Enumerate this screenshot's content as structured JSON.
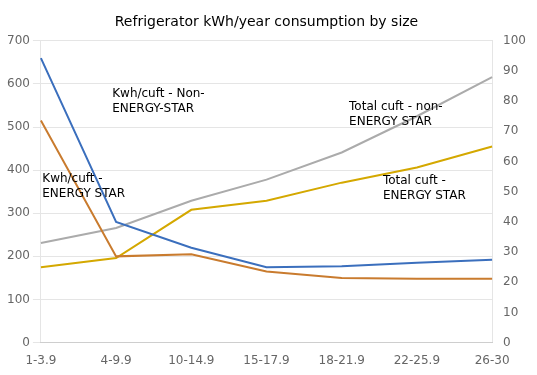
{
  "chart_data": {
    "type": "line",
    "title": "Refrigerator kWh/year consumption by size",
    "categories": [
      "1-3.9",
      "4-9.9",
      "10-14.9",
      "15-17.9",
      "18-21.9",
      "22-25.9",
      "26-30"
    ],
    "ylim": [
      0,
      700
    ],
    "yticks": [
      0,
      100,
      200,
      300,
      400,
      500,
      600,
      700
    ],
    "y2lim": [
      0,
      100
    ],
    "y2ticks": [
      0,
      10,
      20,
      30,
      40,
      50,
      60,
      70,
      80,
      90,
      100
    ],
    "grid": true,
    "series": [
      {
        "color": "#3B6FBD",
        "values": [
          660,
          280,
          220,
          175,
          177,
          185,
          192
        ]
      },
      {
        "color": "#C97B2E",
        "values": [
          515,
          200,
          205,
          165,
          150,
          148,
          148
        ]
      },
      {
        "color": "#ABABAB",
        "values": [
          33,
          38,
          47,
          54,
          63,
          75,
          88
        ],
        "axis": "y2"
      },
      {
        "color": "#D4A800",
        "values": [
          25,
          28,
          44,
          47,
          53,
          58,
          65
        ],
        "axis": "y2"
      }
    ],
    "annotations": [
      "Kwh/cuft - Non-\nENERGY-STAR",
      "Kwh/cuft -\nENERGY STAR",
      "Total cuft - non-\nENERGY STAR",
      "Total cuft -\nENERGY STAR"
    ]
  }
}
